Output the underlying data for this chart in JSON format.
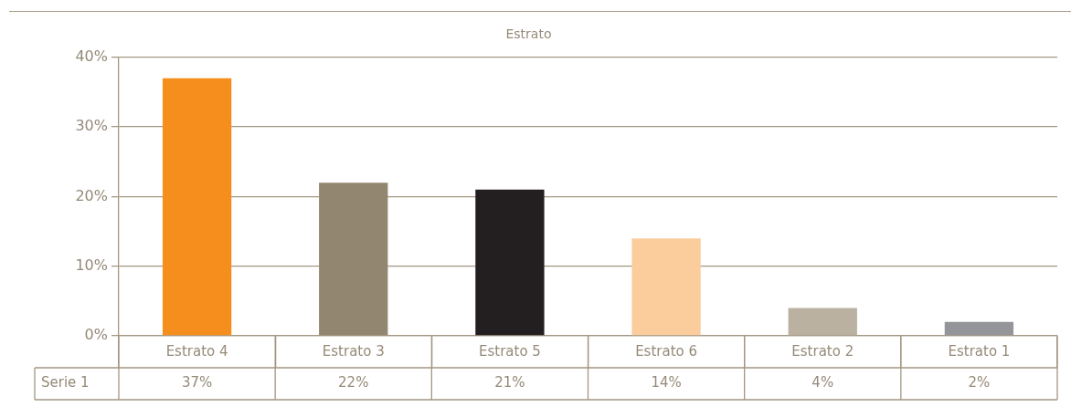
{
  "chart_data": {
    "type": "bar",
    "title": "Estrato",
    "categories": [
      "Estrato 4",
      "Estrato 3",
      "Estrato 5",
      "Estrato 6",
      "Estrato 2",
      "Estrato 1"
    ],
    "series": [
      {
        "name": "Serie 1",
        "values": [
          37,
          22,
          21,
          14,
          4,
          2
        ],
        "colors": [
          "#f68e1e",
          "#938670",
          "#231f20",
          "#fbcd9d",
          "#bab1a0",
          "#939598"
        ],
        "value_labels": [
          "37%",
          "22%",
          "21%",
          "14%",
          "4%",
          "2%"
        ]
      }
    ],
    "ylim": [
      0,
      40
    ],
    "yticks": [
      {
        "value": 0,
        "label": "0%"
      },
      {
        "value": 10,
        "label": "10%"
      },
      {
        "value": 20,
        "label": "20%"
      },
      {
        "value": 30,
        "label": "30%"
      },
      {
        "value": 40,
        "label": "40%"
      }
    ],
    "grid": "y",
    "legend": false
  }
}
